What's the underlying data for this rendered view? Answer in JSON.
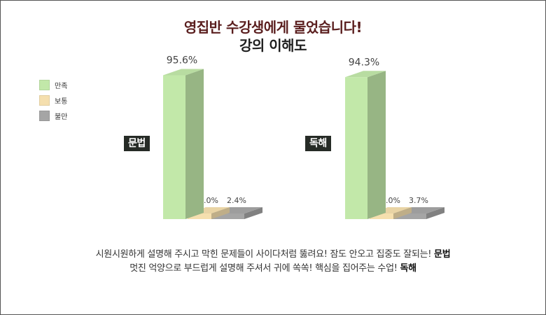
{
  "title": {
    "line1": "영집반 수강생에게 물었습니다!",
    "line2": "강의 이해도"
  },
  "legend": [
    {
      "label": "만족",
      "color": "#c2e8a9"
    },
    {
      "label": "보통",
      "color": "#f5dfae"
    },
    {
      "label": "불만",
      "color": "#a5a5a5"
    }
  ],
  "chart_data": {
    "type": "bar",
    "categories": [
      "문법",
      "독해"
    ],
    "series": [
      {
        "name": "만족",
        "values": [
          95.6,
          94.3
        ]
      },
      {
        "name": "보통",
        "values": [
          2.0,
          2.0
        ]
      },
      {
        "name": "불만",
        "values": [
          2.4,
          3.7
        ]
      }
    ],
    "value_labels": [
      [
        "95.6%",
        "2.0%",
        "2.4%"
      ],
      [
        "94.3%",
        "2.0%",
        "3.7%"
      ]
    ],
    "ylim": [
      0,
      100
    ],
    "title": "영집반 수강생에게 물었습니다! 강의 이해도",
    "legend_position": "left",
    "grid": false
  },
  "footer": {
    "line1_text": "시원시원하게 설명해 주시고 막힌 문제들이 사이다처럼 뚫려요! 잠도 안오고 집중도 잘되는! ",
    "line1_bold": "문법",
    "line2_text": "멋진 억양으로 부드럽게 설명해 주셔서 귀에 쏙쏙! 핵심을 집어주는 수업! ",
    "line2_bold": "독해"
  }
}
